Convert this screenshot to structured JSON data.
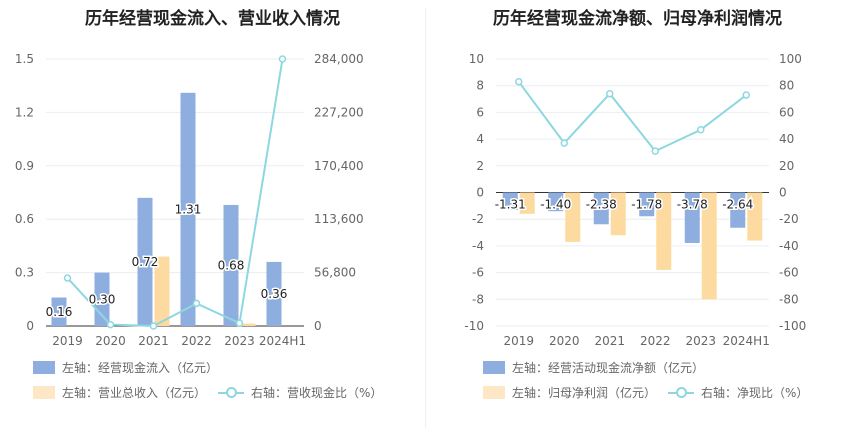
{
  "colors": {
    "bar_primary": "#8eaee0",
    "bar_secondary": "#fddba0",
    "line": "#8dd8e0",
    "grid": "#e9edf3",
    "axis_text": "#666666"
  },
  "chart_data": [
    {
      "type": "bar",
      "title": "历年经营现金流入、营业收入情况",
      "categories": [
        "2019",
        "2020",
        "2021",
        "2022",
        "2023",
        "2024H1"
      ],
      "y_left_ticks": [
        "0",
        "0.3",
        "0.6",
        "0.9",
        "1.2",
        "1.5"
      ],
      "y_left_range": [
        0,
        1.5
      ],
      "y_right_ticks": [
        "0",
        "56,800",
        "113,600",
        "170,400",
        "227,200",
        "284,000"
      ],
      "y_right_range": [
        0,
        284000
      ],
      "series": [
        {
          "name": "左轴：经营现金流入（亿元）",
          "axis": "left",
          "kind": "bar",
          "values": [
            0.16,
            0.3,
            0.72,
            1.31,
            0.68,
            0.36
          ],
          "labels": [
            "0.16",
            "0.30",
            "0.72",
            "1.31",
            "0.68",
            "0.36"
          ]
        },
        {
          "name": "左轴：营业总收入（亿元）",
          "axis": "left",
          "kind": "bar",
          "values": [
            0,
            0,
            0.39,
            0,
            0.014,
            0
          ]
        },
        {
          "name": "右轴：营收现金比（%）",
          "axis": "right",
          "kind": "line",
          "values": [
            51000,
            1500,
            0,
            24000,
            3000,
            284000
          ]
        }
      ]
    },
    {
      "type": "bar",
      "title": "历年经营现金流净额、归母净利润情况",
      "categories": [
        "2019",
        "2020",
        "2021",
        "2022",
        "2023",
        "2024H1"
      ],
      "y_left_ticks": [
        "-10",
        "-8",
        "-6",
        "-4",
        "-2",
        "0",
        "2",
        "4",
        "6",
        "8",
        "10"
      ],
      "y_left_range": [
        -10,
        10
      ],
      "y_right_ticks": [
        "-100",
        "-80",
        "-60",
        "-40",
        "-20",
        "0",
        "20",
        "40",
        "60",
        "80",
        "100"
      ],
      "y_right_range": [
        -100,
        100
      ],
      "series": [
        {
          "name": "左轴：经营活动现金流净额（亿元）",
          "axis": "left",
          "kind": "bar",
          "values": [
            -1.31,
            -1.4,
            -2.38,
            -1.78,
            -3.78,
            -2.64
          ],
          "labels": [
            "-1.31",
            "-1.40",
            "-2.38",
            "-1.78",
            "-3.78",
            "-2.64"
          ]
        },
        {
          "name": "左轴：归母净利润（亿元）",
          "axis": "left",
          "kind": "bar",
          "values": [
            -1.6,
            -3.7,
            -3.2,
            -5.8,
            -8.0,
            -3.6
          ]
        },
        {
          "name": "右轴：净现比（%）",
          "axis": "right",
          "kind": "line",
          "values": [
            83,
            37,
            74,
            31,
            47,
            73
          ]
        }
      ]
    }
  ]
}
